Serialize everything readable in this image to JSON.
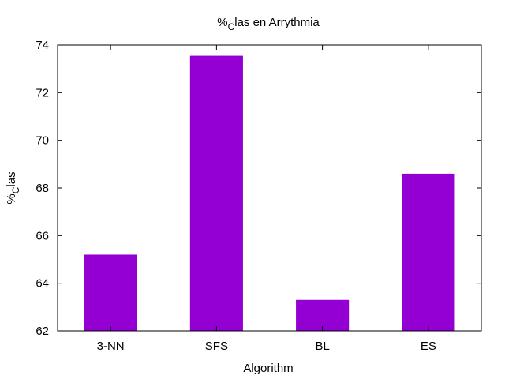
{
  "chart_data": {
    "type": "bar",
    "title": {
      "prefix": "%",
      "sub": "C",
      "rest": "las en Arrythmia"
    },
    "xlabel": "Algorithm",
    "ylabel": {
      "prefix": "%",
      "sub": "C",
      "rest": "las"
    },
    "categories": [
      "3-NN",
      "SFS",
      "BL",
      "ES"
    ],
    "values": [
      65.2,
      73.55,
      63.3,
      68.6
    ],
    "ylim": [
      62,
      74
    ],
    "yticks": [
      62,
      64,
      66,
      68,
      70,
      72,
      74
    ],
    "bar_color": "#9400d3",
    "grid": false,
    "legend": "none"
  }
}
